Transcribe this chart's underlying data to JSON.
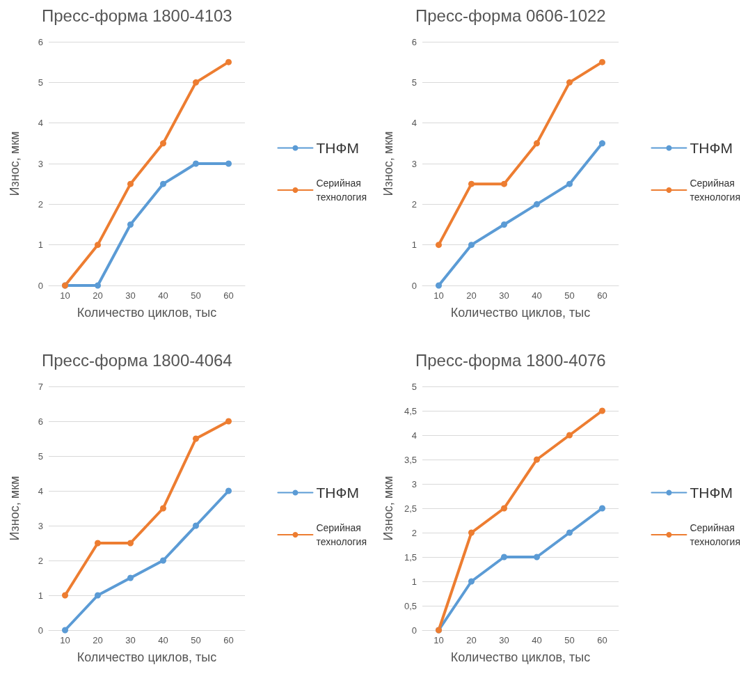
{
  "chart_data": [
    {
      "type": "line",
      "title": "Пресс-форма 1800-4103",
      "xlabel": "Количество циклов, тыс",
      "ylabel": "Износ, мкм",
      "categories": [
        "10",
        "20",
        "30",
        "40",
        "50",
        "60"
      ],
      "series": [
        {
          "name": "ТНФМ",
          "color": "#5b9bd5",
          "values": [
            0,
            0,
            1.5,
            2.5,
            3,
            3
          ]
        },
        {
          "name": "Серийная технология",
          "color": "#ed7d31",
          "values": [
            0,
            1,
            2.5,
            3.5,
            5,
            5.5
          ]
        }
      ],
      "ylim": [
        0,
        6
      ],
      "yticks": [
        0,
        1,
        2,
        3,
        4,
        5,
        6
      ],
      "grid": "y",
      "legend": "right",
      "marker": "circle",
      "line_style": "solid"
    },
    {
      "type": "line",
      "title": "Пресс-форма 0606-1022",
      "xlabel": "Количество циклов, тыс",
      "ylabel": "Износ, мкм",
      "categories": [
        "10",
        "20",
        "30",
        "40",
        "50",
        "60"
      ],
      "series": [
        {
          "name": "ТНФМ",
          "color": "#5b9bd5",
          "values": [
            0,
            1,
            1.5,
            2,
            2.5,
            3.5
          ]
        },
        {
          "name": "Серийная технология",
          "color": "#ed7d31",
          "values": [
            1,
            2.5,
            2.5,
            3.5,
            5,
            5.5
          ]
        }
      ],
      "ylim": [
        0,
        6
      ],
      "yticks": [
        0,
        1,
        2,
        3,
        4,
        5,
        6
      ],
      "grid": "y",
      "legend": "right",
      "marker": "circle",
      "line_style": "solid"
    },
    {
      "type": "line",
      "title": "Пресс-форма 1800-4064",
      "xlabel": "Количество циклов, тыс",
      "ylabel": "Износ, мкм",
      "categories": [
        "10",
        "20",
        "30",
        "40",
        "50",
        "60"
      ],
      "series": [
        {
          "name": "ТНФМ",
          "color": "#5b9bd5",
          "values": [
            0,
            1,
            1.5,
            2,
            3,
            4
          ]
        },
        {
          "name": "Серийная технология",
          "color": "#ed7d31",
          "values": [
            1,
            2.5,
            2.5,
            3.5,
            5.5,
            6
          ]
        }
      ],
      "ylim": [
        0,
        7
      ],
      "yticks": [
        0,
        1,
        2,
        3,
        4,
        5,
        6,
        7
      ],
      "grid": "y",
      "legend": "right",
      "marker": "circle",
      "line_style": "solid"
    },
    {
      "type": "line",
      "title": "Пресс-форма 1800-4076",
      "xlabel": "Количество циклов, тыс",
      "ylabel": "Износ, мкм",
      "categories": [
        "10",
        "20",
        "30",
        "40",
        "50",
        "60"
      ],
      "series": [
        {
          "name": "ТНФМ",
          "color": "#5b9bd5",
          "values": [
            0,
            1,
            1.5,
            1.5,
            2,
            2.5
          ]
        },
        {
          "name": "Серийная технология",
          "color": "#ed7d31",
          "values": [
            0,
            2,
            2.5,
            3.5,
            4,
            4.5
          ]
        }
      ],
      "ylim": [
        0,
        5
      ],
      "yticks": [
        0,
        {
          "value": 0.5,
          "label": "0,5"
        },
        1,
        {
          "value": 1.5,
          "label": "1,5"
        },
        2,
        {
          "value": 2.5,
          "label": "2,5"
        },
        3,
        {
          "value": 3.5,
          "label": "3,5"
        },
        4,
        {
          "value": 4.5,
          "label": "4,5"
        },
        5
      ],
      "grid": "y",
      "legend": "right",
      "marker": "circle",
      "line_style": "solid"
    }
  ]
}
